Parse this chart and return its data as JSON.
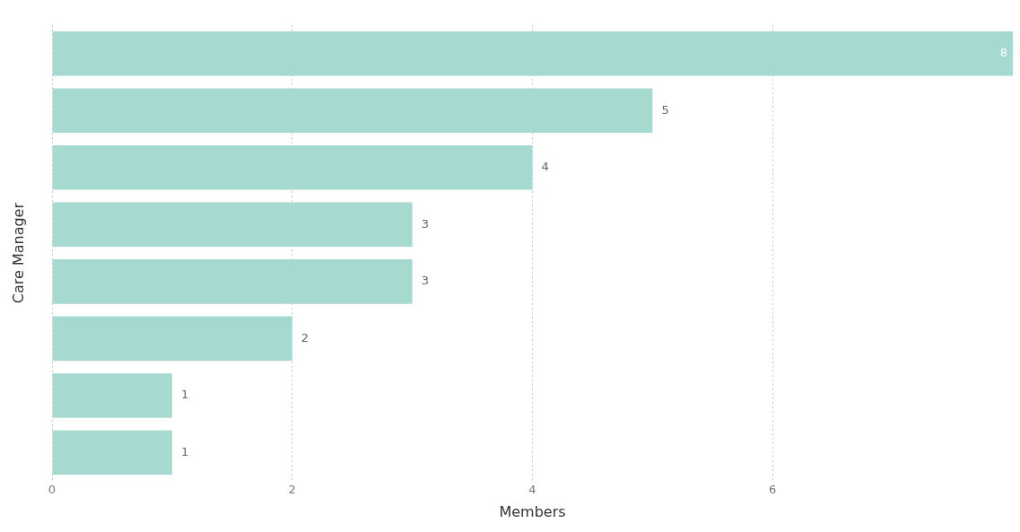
{
  "chart_data": {
    "type": "bar",
    "orientation": "horizontal",
    "xlabel": "Members",
    "ylabel": "Care Manager",
    "categories": [
      null,
      null,
      null,
      null,
      null,
      null,
      null,
      null
    ],
    "values": [
      8,
      5,
      4,
      3,
      3,
      2,
      1,
      1
    ],
    "color": "#a6dad0",
    "xlim": [
      0,
      8
    ],
    "xticks": [
      0,
      2,
      4,
      6
    ],
    "grid": "x",
    "tick_labels": "x",
    "data_labels": true,
    "legend": false
  }
}
